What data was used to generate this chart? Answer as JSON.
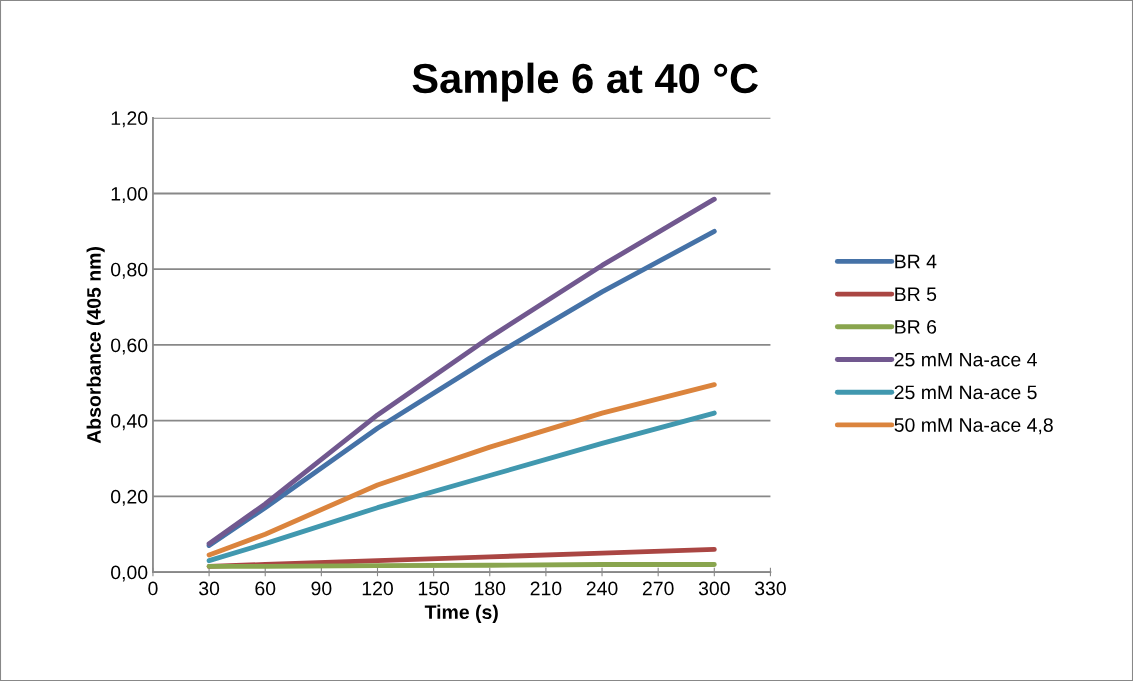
{
  "chart_data": {
    "type": "line",
    "title": "Sample 6 at 40 °C",
    "xlabel": "Time (s)",
    "ylabel": "Absorbance (405 nm)",
    "x": [
      30,
      60,
      120,
      180,
      240,
      300
    ],
    "series": [
      {
        "name": "BR 4",
        "color": "#4572a7",
        "values": [
          0.07,
          0.17,
          0.38,
          0.565,
          0.74,
          0.9
        ]
      },
      {
        "name": "BR 5",
        "color": "#aa4643",
        "values": [
          0.015,
          0.02,
          0.03,
          0.04,
          0.05,
          0.06
        ]
      },
      {
        "name": "BR 6",
        "color": "#89a54e",
        "values": [
          0.015,
          0.015,
          0.017,
          0.018,
          0.02,
          0.02
        ]
      },
      {
        "name": "25 mM Na-ace 4",
        "color": "#71588f",
        "values": [
          0.075,
          0.18,
          0.415,
          0.62,
          0.81,
          0.985
        ]
      },
      {
        "name": "25 mM Na-ace 5",
        "color": "#4198af",
        "values": [
          0.03,
          0.075,
          0.17,
          0.255,
          0.34,
          0.42
        ]
      },
      {
        "name": "50 mM Na-ace 4,8",
        "color": "#db843d",
        "values": [
          0.045,
          0.1,
          0.23,
          0.33,
          0.42,
          0.495
        ]
      }
    ],
    "xlim": [
      0,
      330
    ],
    "xticks": [
      0,
      30,
      60,
      90,
      120,
      150,
      180,
      210,
      240,
      270,
      300,
      330
    ],
    "ylim": [
      0,
      1.2
    ],
    "yticks": [
      {
        "value": 0,
        "label": "0,00"
      },
      {
        "value": 0.2,
        "label": "0,20"
      },
      {
        "value": 0.4,
        "label": "0,40"
      },
      {
        "value": 0.6,
        "label": "0,60"
      },
      {
        "value": 0.8,
        "label": "0,80"
      },
      {
        "value": 1.0,
        "label": "1,00"
      },
      {
        "value": 1.2,
        "label": "1,20"
      }
    ],
    "grid": "y",
    "legend": "right",
    "marker": "none",
    "line_style": "solid"
  }
}
